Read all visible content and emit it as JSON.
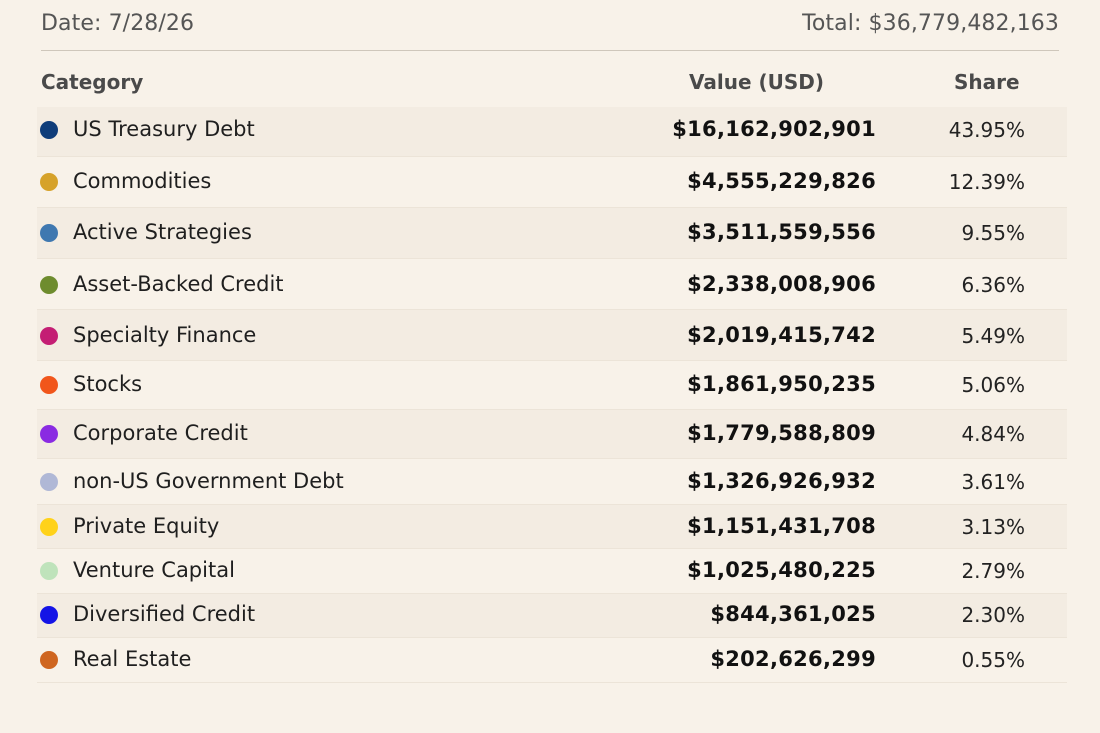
{
  "header": {
    "date_label": "Date: 7/28/26",
    "total_label": "Total: $36,779,482,163"
  },
  "columns": {
    "category": "Category",
    "value": "Value (USD)",
    "share": "Share"
  },
  "rows": [
    {
      "category": "US Treasury Debt",
      "value": "$16,162,902,901",
      "share": "43.95%",
      "color": "#0f3d7a",
      "dot_icon": "navy-dot-icon"
    },
    {
      "category": "Commodities",
      "value": "$4,555,229,826",
      "share": "12.39%",
      "color": "#d6a22a",
      "dot_icon": "gold-dot-icon"
    },
    {
      "category": "Active Strategies",
      "value": "$3,511,559,556",
      "share": "9.55%",
      "color": "#3f78b0",
      "dot_icon": "steel-blue-dot-icon"
    },
    {
      "category": "Asset-Backed Credit",
      "value": "$2,338,008,906",
      "share": "6.36%",
      "color": "#6e8c2e",
      "dot_icon": "olive-dot-icon"
    },
    {
      "category": "Specialty Finance",
      "value": "$2,019,415,742",
      "share": "5.49%",
      "color": "#c41e74",
      "dot_icon": "magenta-dot-icon"
    },
    {
      "category": "Stocks",
      "value": "$1,861,950,235",
      "share": "5.06%",
      "color": "#f1561b",
      "dot_icon": "orange-dot-icon"
    },
    {
      "category": "Corporate Credit",
      "value": "$1,779,588,809",
      "share": "4.84%",
      "color": "#8a2be2",
      "dot_icon": "purple-dot-icon"
    },
    {
      "category": "non-US Government Debt",
      "value": "$1,326,926,932",
      "share": "3.61%",
      "color": "#b0b8d6",
      "dot_icon": "lavender-dot-icon"
    },
    {
      "category": "Private Equity",
      "value": "$1,151,431,708",
      "share": "3.13%",
      "color": "#ffd21a",
      "dot_icon": "yellow-dot-icon"
    },
    {
      "category": "Venture Capital",
      "value": "$1,025,480,225",
      "share": "2.79%",
      "color": "#bfe3bb",
      "dot_icon": "mint-dot-icon"
    },
    {
      "category": "Diversified Credit",
      "value": "$844,361,025",
      "share": "2.30%",
      "color": "#1414e6",
      "dot_icon": "blue-dot-icon"
    },
    {
      "category": "Real Estate",
      "value": "$202,626,299",
      "share": "0.55%",
      "color": "#cf6620",
      "dot_icon": "rust-dot-icon"
    }
  ]
}
